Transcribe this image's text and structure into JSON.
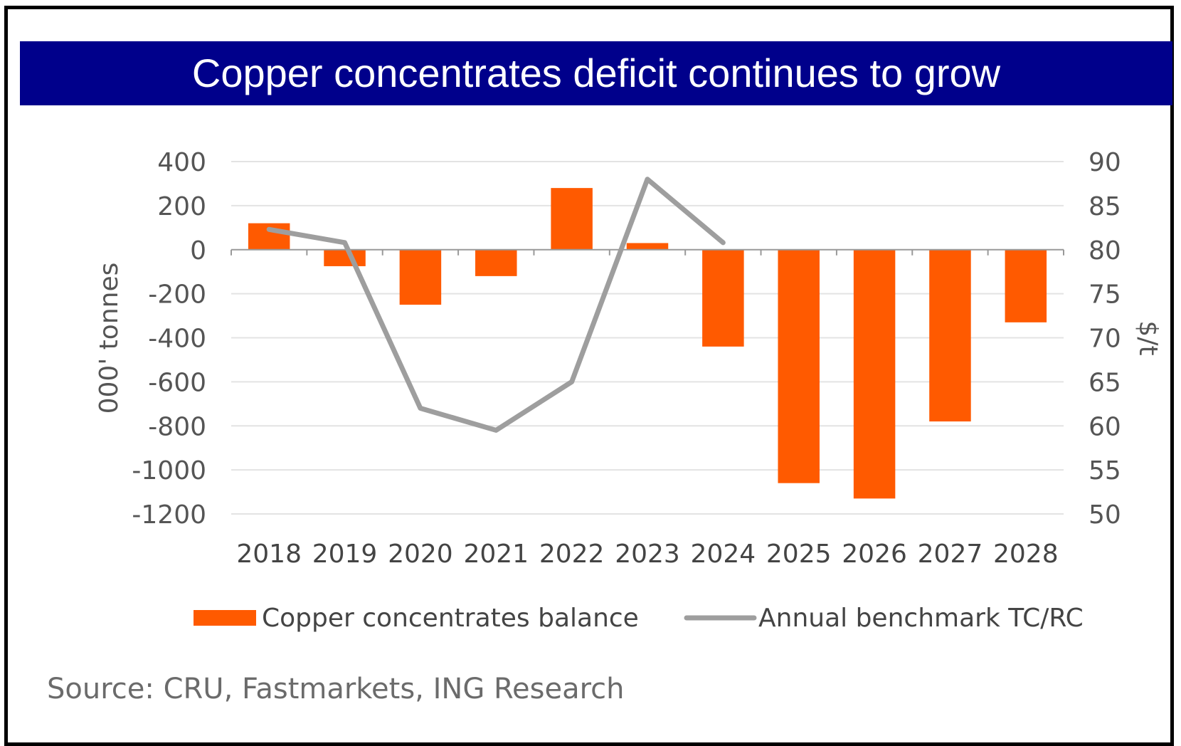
{
  "title": "Copper concentrates deficit continues to grow",
  "source": "Source: CRU, Fastmarkets, ING Research",
  "chart_data": {
    "type": "bar",
    "categories": [
      "2018",
      "2019",
      "2020",
      "2021",
      "2022",
      "2023",
      "2024",
      "2025",
      "2026",
      "2027",
      "2028"
    ],
    "series": [
      {
        "name": "Copper concentrates balance",
        "type": "bar",
        "axis": "left",
        "color": "#ff5a00",
        "values": [
          120,
          -75,
          -250,
          -120,
          280,
          30,
          -440,
          -1060,
          -1130,
          -780,
          -330
        ]
      },
      {
        "name": "Annual benchmark TC/RC",
        "type": "line",
        "axis": "right",
        "color": "#9e9e9e",
        "values": [
          82.3,
          80.8,
          62.0,
          59.5,
          65.0,
          88.0,
          80.8,
          null,
          null,
          null,
          null
        ]
      }
    ],
    "ylabel": "000' tonnes",
    "y2label": "$/t",
    "ylim": [
      -1200,
      400
    ],
    "y2lim": [
      50,
      90
    ],
    "yticks": [
      "400",
      "200",
      "0",
      "-200",
      "-400",
      "-600",
      "-800",
      "-1000",
      "-1200"
    ],
    "y2ticks": [
      "90",
      "85",
      "80",
      "75",
      "70",
      "65",
      "60",
      "55",
      "50"
    ],
    "grid": true,
    "legend_position": "bottom"
  }
}
